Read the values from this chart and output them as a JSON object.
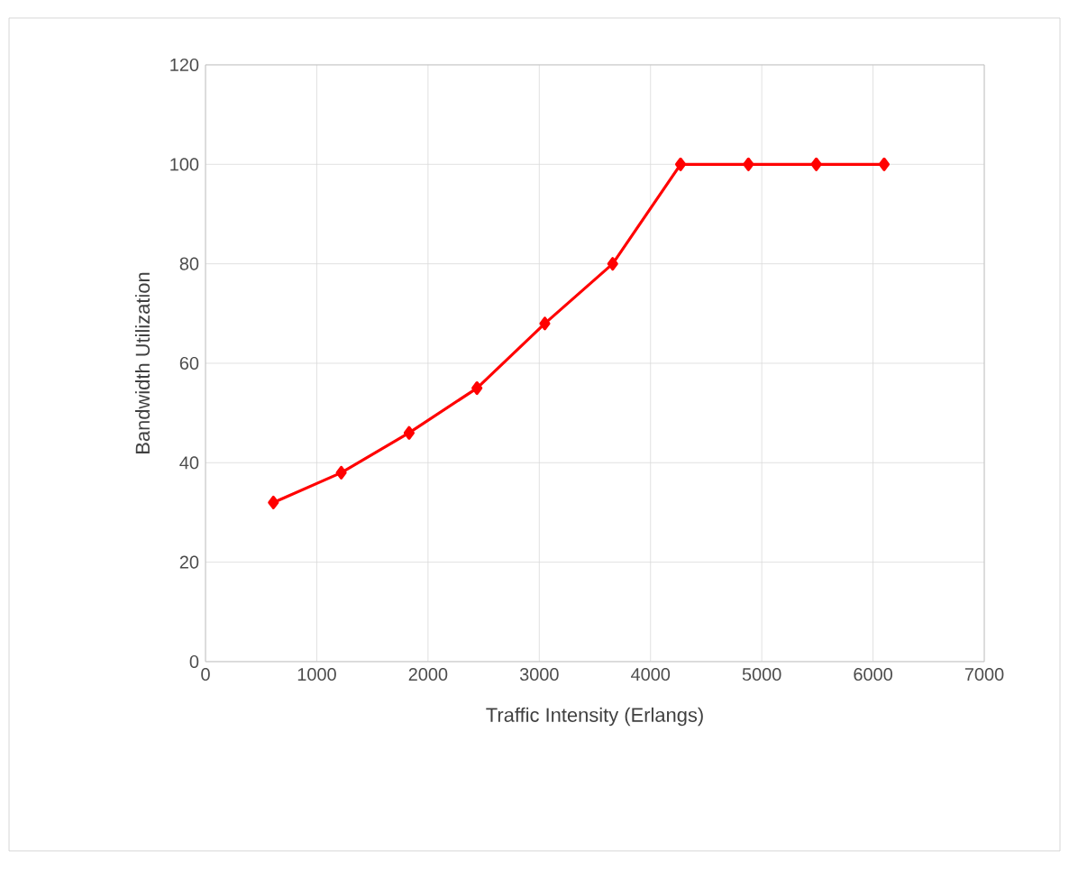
{
  "chart_data": {
    "type": "line",
    "xlabel": "Traffic Intensity (Erlangs)",
    "ylabel": "Bandwidth Utilization",
    "series": [
      {
        "color": "#ff0000",
        "x": [
          610,
          1220,
          1830,
          2440,
          3050,
          3660,
          4270,
          4880,
          5490,
          6100
        ],
        "values": [
          32,
          38,
          46,
          55,
          68,
          80,
          100,
          100,
          100,
          100
        ]
      }
    ],
    "xlim": [
      0,
      7000
    ],
    "xticks": [
      0,
      1000,
      2000,
      3000,
      4000,
      5000,
      6000,
      7000
    ],
    "ylim": [
      0,
      120
    ],
    "yticks": [
      0,
      20,
      40,
      60,
      80,
      100,
      120
    ],
    "grid": true,
    "marker": "diamond",
    "line_style": "solid"
  }
}
